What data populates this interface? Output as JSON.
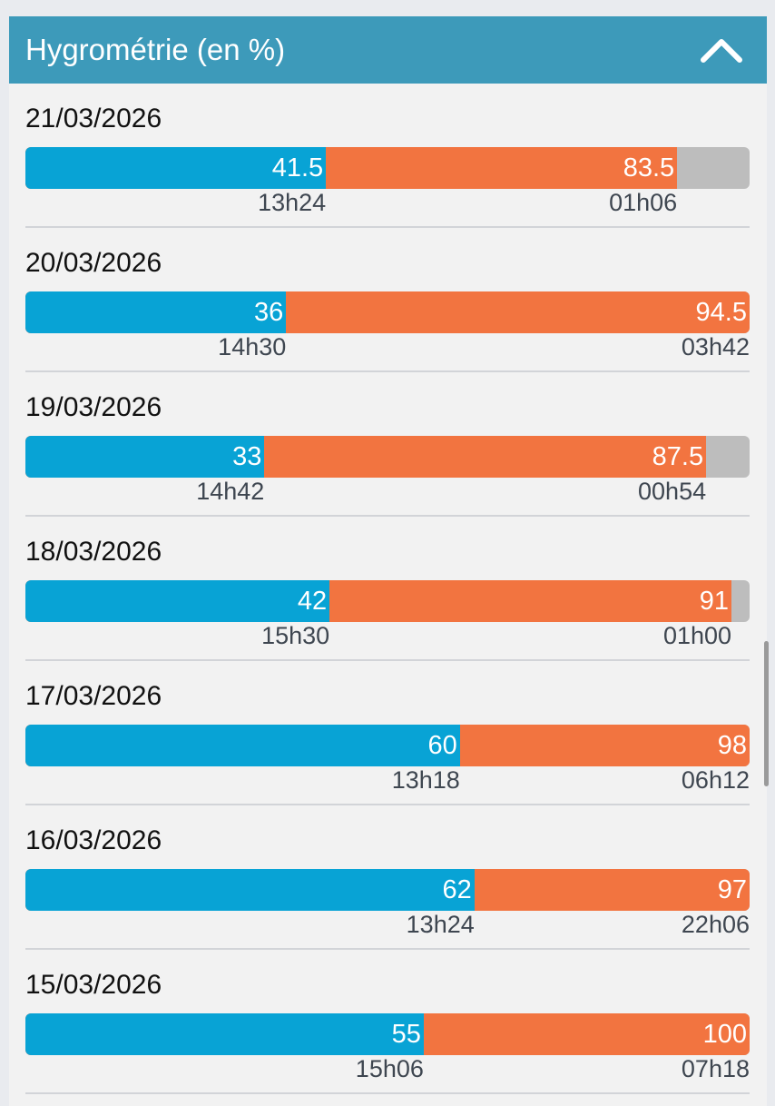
{
  "header": {
    "title": "Hygrométrie (en %)",
    "collapse_icon": "chevron-up-icon"
  },
  "colors": {
    "header": "#3d9aba",
    "min": "#08a3d5",
    "max": "#f27440",
    "track": "#bdbdbd"
  },
  "days": [
    {
      "date": "21/03/2026",
      "min": "41.5",
      "min_time": "13h24",
      "max": "83.5",
      "max_time": "01h06"
    },
    {
      "date": "20/03/2026",
      "min": "36",
      "min_time": "14h30",
      "max": "94.5",
      "max_time": "03h42"
    },
    {
      "date": "19/03/2026",
      "min": "33",
      "min_time": "14h42",
      "max": "87.5",
      "max_time": "00h54"
    },
    {
      "date": "18/03/2026",
      "min": "42",
      "min_time": "15h30",
      "max": "91",
      "max_time": "01h00"
    },
    {
      "date": "17/03/2026",
      "min": "60",
      "min_time": "13h18",
      "max": "98",
      "max_time": "06h12"
    },
    {
      "date": "16/03/2026",
      "min": "62",
      "min_time": "13h24",
      "max": "97",
      "max_time": "22h06"
    },
    {
      "date": "15/03/2026",
      "min": "55",
      "min_time": "15h06",
      "max": "100",
      "max_time": "07h18"
    }
  ]
}
